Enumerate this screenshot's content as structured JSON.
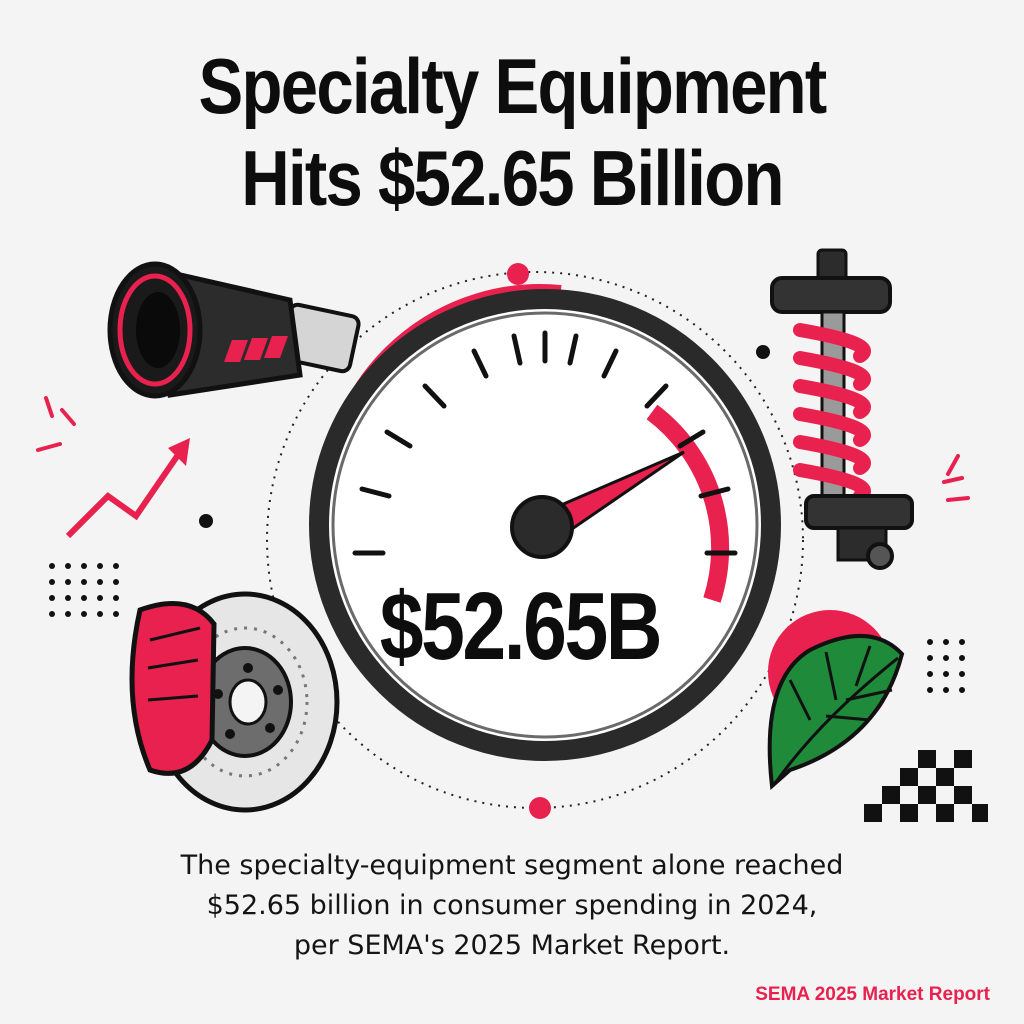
{
  "headline": {
    "line1": "Specialty Equipment",
    "line2": "Hits $52.65 Billion"
  },
  "gauge": {
    "value_label": "$52.65B"
  },
  "caption": {
    "line1": "The specialty-equipment segment alone reached",
    "line2": "$52.65 billion in consumer spending in 2024,",
    "line3": "per SEMA's 2025 Market Report."
  },
  "source": "SEMA 2025 Market Report",
  "icons": [
    "exhaust-tip-icon",
    "coilover-shock-icon",
    "brake-rotor-caliper-icon",
    "monstera-leaf-icon",
    "checkered-flag-icon",
    "trend-arrow-icon",
    "speedometer-gauge-icon"
  ],
  "colors": {
    "accent": "#e8214f",
    "ink": "#0d0d0d",
    "background": "#f4f4f4",
    "leaf": "#1f8a3a"
  }
}
